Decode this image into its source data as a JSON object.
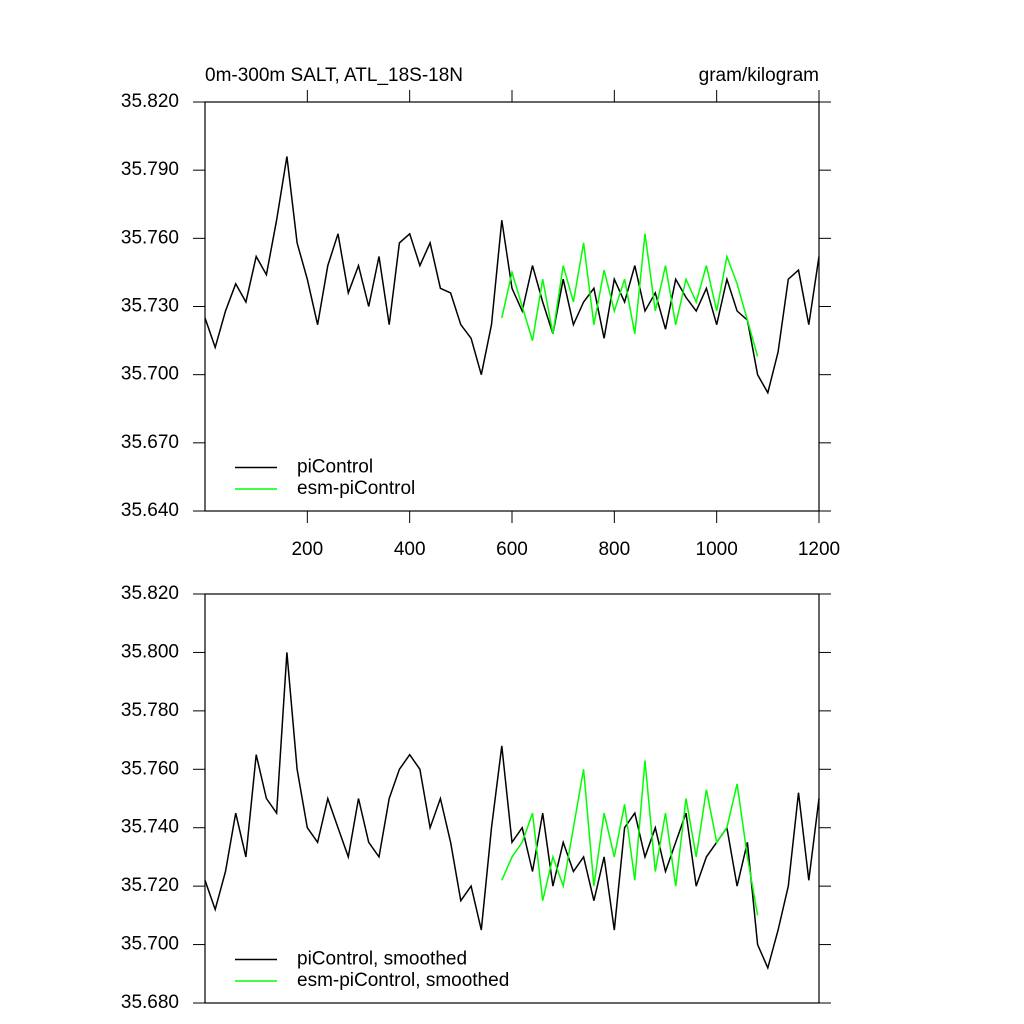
{
  "chart_data": [
    {
      "type": "line",
      "title": "0m-300m SALT, ATL_18S-18N",
      "subtitle": "gram/kilogram",
      "xlim": [
        0,
        1200
      ],
      "ylim": [
        35.64,
        35.82
      ],
      "xticks": [
        200,
        400,
        600,
        800,
        1000,
        1200
      ],
      "yticks": [
        {
          "value": 35.64,
          "label": "35.640"
        },
        {
          "value": 35.67,
          "label": "35.670"
        },
        {
          "value": 35.7,
          "label": "35.700"
        },
        {
          "value": 35.73,
          "label": "35.730"
        },
        {
          "value": 35.76,
          "label": "35.760"
        },
        {
          "value": 35.79,
          "label": "35.790"
        },
        {
          "value": 35.82,
          "label": "35.820"
        }
      ],
      "legend": "lower left",
      "series": [
        {
          "name": "piControl",
          "color": "#000000",
          "x": [
            0,
            20,
            40,
            60,
            80,
            100,
            120,
            140,
            160,
            180,
            200,
            220,
            240,
            260,
            280,
            300,
            320,
            340,
            360,
            380,
            400,
            420,
            440,
            460,
            480,
            500,
            520,
            540,
            560,
            580,
            600,
            620,
            640,
            660,
            680,
            700,
            720,
            740,
            760,
            780,
            800,
            820,
            840,
            860,
            880,
            900,
            920,
            940,
            960,
            980,
            1000,
            1020,
            1040,
            1060,
            1080,
            1100,
            1120,
            1140,
            1160,
            1180,
            1200
          ],
          "values": [
            35.725,
            35.712,
            35.728,
            35.74,
            35.732,
            35.752,
            35.744,
            35.768,
            35.796,
            35.758,
            35.742,
            35.722,
            35.748,
            35.762,
            35.736,
            35.748,
            35.73,
            35.752,
            35.722,
            35.758,
            35.762,
            35.748,
            35.758,
            35.738,
            35.736,
            35.722,
            35.716,
            35.7,
            35.722,
            35.768,
            35.738,
            35.728,
            35.748,
            35.732,
            35.718,
            35.742,
            35.722,
            35.732,
            35.738,
            35.716,
            35.742,
            35.732,
            35.748,
            35.728,
            35.736,
            35.72,
            35.742,
            35.734,
            35.728,
            35.738,
            35.722,
            35.742,
            35.728,
            35.724,
            35.7,
            35.692,
            35.71,
            35.742,
            35.746,
            35.722,
            35.752
          ]
        },
        {
          "name": "esm-piControl",
          "color": "#00ff00",
          "x": [
            580,
            600,
            620,
            640,
            660,
            680,
            700,
            720,
            740,
            760,
            780,
            800,
            820,
            840,
            860,
            880,
            900,
            920,
            940,
            960,
            980,
            1000,
            1020,
            1040,
            1060,
            1080
          ],
          "values": [
            35.725,
            35.745,
            35.73,
            35.715,
            35.742,
            35.718,
            35.748,
            35.732,
            35.758,
            35.722,
            35.746,
            35.728,
            35.742,
            35.718,
            35.762,
            35.728,
            35.748,
            35.722,
            35.742,
            35.732,
            35.748,
            35.728,
            35.752,
            35.74,
            35.724,
            35.708
          ]
        }
      ]
    },
    {
      "type": "line",
      "xlim": [
        0,
        1200
      ],
      "ylim": [
        35.68,
        35.82
      ],
      "yticks": [
        {
          "value": 35.68,
          "label": "35.680"
        },
        {
          "value": 35.7,
          "label": "35.700"
        },
        {
          "value": 35.72,
          "label": "35.720"
        },
        {
          "value": 35.74,
          "label": "35.740"
        },
        {
          "value": 35.76,
          "label": "35.760"
        },
        {
          "value": 35.78,
          "label": "35.780"
        },
        {
          "value": 35.8,
          "label": "35.800"
        },
        {
          "value": 35.82,
          "label": "35.820"
        }
      ],
      "legend": "lower left",
      "series": [
        {
          "name": "piControl, smoothed",
          "color": "#000000",
          "x": [
            0,
            20,
            40,
            60,
            80,
            100,
            120,
            140,
            160,
            180,
            200,
            220,
            240,
            260,
            280,
            300,
            320,
            340,
            360,
            380,
            400,
            420,
            440,
            460,
            480,
            500,
            520,
            540,
            560,
            580,
            600,
            620,
            640,
            660,
            680,
            700,
            720,
            740,
            760,
            780,
            800,
            820,
            840,
            860,
            880,
            900,
            920,
            940,
            960,
            980,
            1000,
            1020,
            1040,
            1060,
            1080,
            1100,
            1120,
            1140,
            1160,
            1180,
            1200
          ],
          "values": [
            35.722,
            35.712,
            35.725,
            35.745,
            35.73,
            35.765,
            35.75,
            35.745,
            35.8,
            35.76,
            35.74,
            35.735,
            35.75,
            35.74,
            35.73,
            35.75,
            35.735,
            35.73,
            35.75,
            35.76,
            35.765,
            35.76,
            35.74,
            35.75,
            35.735,
            35.715,
            35.72,
            35.705,
            35.74,
            35.768,
            35.735,
            35.74,
            35.725,
            35.745,
            35.72,
            35.735,
            35.725,
            35.73,
            35.715,
            35.73,
            35.705,
            35.74,
            35.745,
            35.73,
            35.74,
            35.725,
            35.735,
            35.745,
            35.72,
            35.73,
            35.735,
            35.74,
            35.72,
            35.735,
            35.7,
            35.692,
            35.705,
            35.72,
            35.752,
            35.722,
            35.75
          ]
        },
        {
          "name": "esm-piControl, smoothed",
          "color": "#00ff00",
          "x": [
            580,
            600,
            620,
            640,
            660,
            680,
            700,
            720,
            740,
            760,
            780,
            800,
            820,
            840,
            860,
            880,
            900,
            920,
            940,
            960,
            980,
            1000,
            1020,
            1040,
            1060,
            1080
          ],
          "values": [
            35.722,
            35.73,
            35.735,
            35.745,
            35.715,
            35.73,
            35.72,
            35.74,
            35.76,
            35.72,
            35.745,
            35.73,
            35.748,
            35.722,
            35.763,
            35.725,
            35.745,
            35.72,
            35.75,
            35.73,
            35.753,
            35.735,
            35.74,
            35.755,
            35.73,
            35.71
          ]
        }
      ]
    }
  ]
}
